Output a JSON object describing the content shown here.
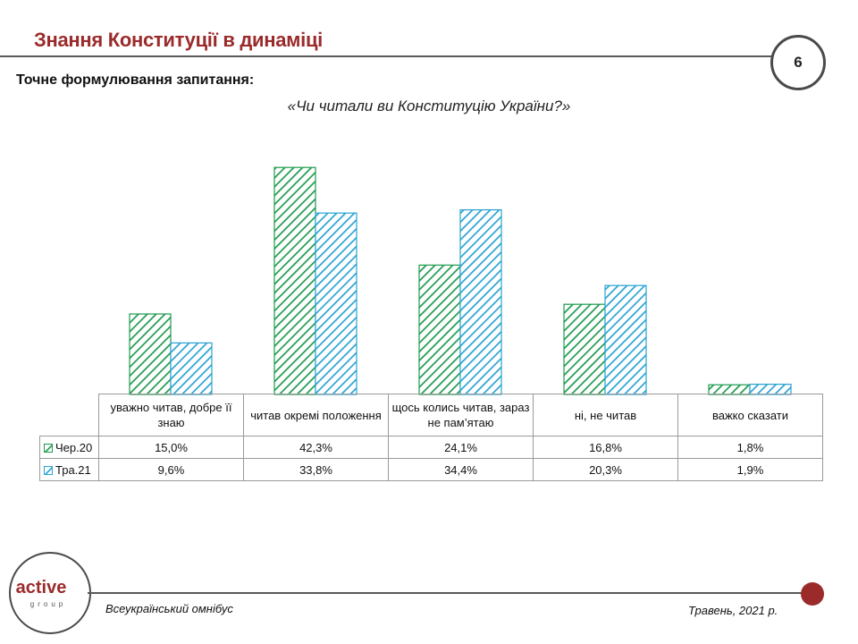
{
  "header": {
    "title": "Знання Конституції в динаміці",
    "page_number": "6",
    "subtitle": "Точне формулювання  запитання:",
    "question": "«Чи читали ви Конституцію України?»"
  },
  "chart_data": {
    "type": "bar",
    "categories": [
      "уважно читав, добре її знаю",
      "читав окремі положення",
      "щось колись читав, зараз не пам’ятаю",
      "ні, не читав",
      "важко сказати"
    ],
    "series": [
      {
        "name": "Чер.20",
        "values": [
          15.0,
          42.3,
          24.1,
          16.8,
          1.8
        ],
        "labels": [
          "15,0%",
          "42,3%",
          "24,1%",
          "16,8%",
          "1,8%"
        ],
        "color": "#1e9b4e"
      },
      {
        "name": "Тра.21",
        "values": [
          9.6,
          33.8,
          34.4,
          20.3,
          1.9
        ],
        "labels": [
          "9,6%",
          "33,8%",
          "34,4%",
          "20,3%",
          "1,9%"
        ],
        "color": "#2aa3d3"
      }
    ],
    "legend": "table",
    "data_table": true,
    "grid": false
  },
  "footer": {
    "logo_main": "active",
    "logo_sub": "group",
    "survey": "Всеукраїнський омнібус",
    "date": "Травень, 2021 р."
  },
  "colors": {
    "accent": "#9b2b2b",
    "rule": "#5a5a5a"
  }
}
